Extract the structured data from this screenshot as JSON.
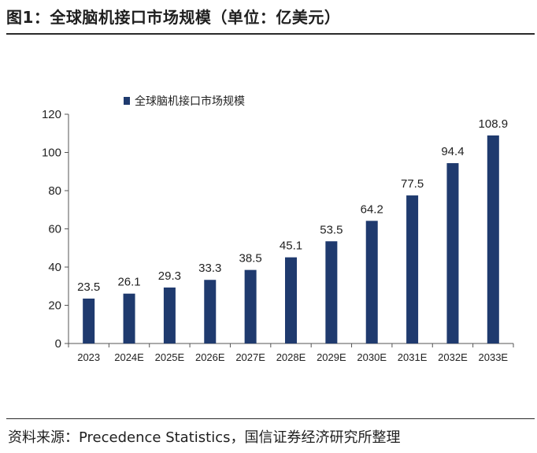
{
  "figure": {
    "title": "图1：全球脑机接口市场规模（单位：亿美元）",
    "source": "资料来源：Precedence Statistics，国信证券经济研究所整理"
  },
  "chart_data": {
    "type": "bar",
    "categories": [
      "2023",
      "2024E",
      "2025E",
      "2026E",
      "2027E",
      "2028E",
      "2029E",
      "2030E",
      "2031E",
      "2032E",
      "2033E"
    ],
    "series": [
      {
        "name": "全球脑机接口市场规模",
        "values": [
          23.5,
          26.1,
          29.3,
          33.3,
          38.5,
          45.1,
          53.5,
          64.2,
          77.5,
          94.4,
          108.9
        ],
        "value_labels": [
          "23.5",
          "26.1",
          "29.3",
          "33.3",
          "38.5",
          "45.1",
          "53.5",
          "64.2",
          "77.5",
          "94.4",
          "108.9"
        ],
        "color": "#1f3a6e"
      }
    ],
    "ylim": [
      0,
      120
    ],
    "yticks": [
      0,
      20,
      40,
      60,
      80,
      100,
      120
    ],
    "ytick_labels": [
      "0",
      "20",
      "40",
      "60",
      "80",
      "100",
      "120"
    ],
    "grid": false,
    "legend": "top-left"
  }
}
